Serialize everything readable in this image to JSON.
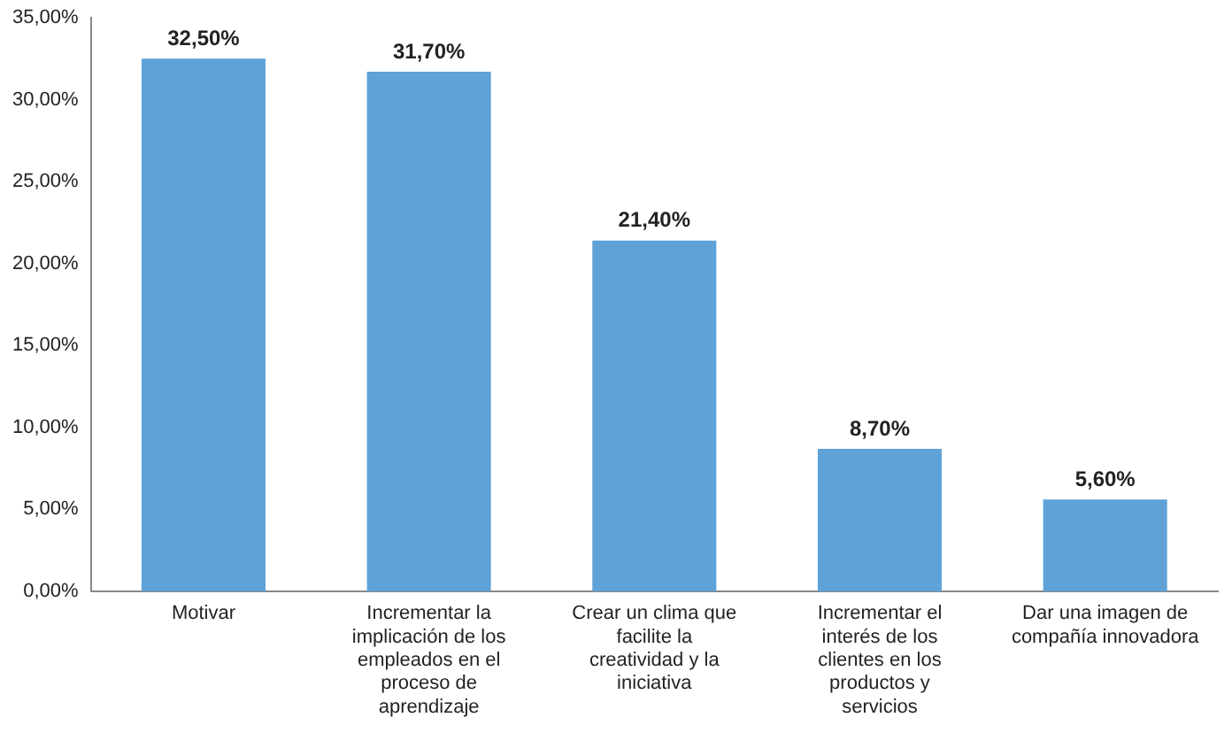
{
  "chart_data": {
    "type": "bar",
    "categories": [
      "Motivar",
      "Incrementar la implicación de los empleados en el proceso de aprendizaje",
      "Crear un clima que facilite la creatividad y la iniciativa",
      "Incrementar el interés de los clientes en los productos y servicios",
      "Dar una imagen de compañía innovadora"
    ],
    "values": [
      32.5,
      31.7,
      21.4,
      8.7,
      5.6
    ],
    "value_labels": [
      "32,50%",
      "31,70%",
      "21,40%",
      "8,70%",
      "5,60%"
    ],
    "color": "#5fa2d8",
    "ylim": [
      0,
      35
    ],
    "yticks": [
      {
        "value": 0,
        "label": "0,00%"
      },
      {
        "value": 5,
        "label": "5,00%"
      },
      {
        "value": 10,
        "label": "10,00%"
      },
      {
        "value": 15,
        "label": "15,00%"
      },
      {
        "value": 20,
        "label": "20,00%"
      },
      {
        "value": 25,
        "label": "25,00%"
      },
      {
        "value": 30,
        "label": "30,00%"
      },
      {
        "value": 35,
        "label": "35,00%"
      }
    ],
    "grid": false,
    "legend": false
  }
}
